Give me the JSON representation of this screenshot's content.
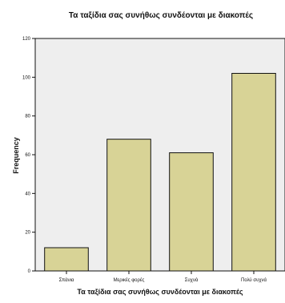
{
  "chart_data": {
    "type": "bar",
    "title": "Τα ταξίδια σας συνήθως συνδέονται με διακοπές",
    "xlabel": "Τα ταξίδια σας συνήθως συνδέονται με διακοπές",
    "ylabel": "Frequency",
    "categories": [
      "Σπάνια",
      "Μερικές φορές",
      "Συχνά",
      "Πολύ συχνά"
    ],
    "values": [
      12,
      68,
      61,
      102
    ],
    "ylim": [
      0,
      120
    ],
    "yticks": [
      0,
      20,
      40,
      60,
      80,
      100,
      120
    ],
    "grid": false,
    "legend": "none",
    "colors": {
      "bar_fill": "#d8d396",
      "bar_stroke": "#111111",
      "plot_background": "#eeeeee",
      "axis": "#111111"
    }
  }
}
